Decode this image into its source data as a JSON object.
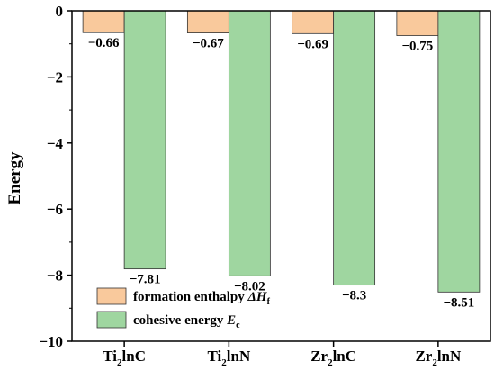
{
  "chart_data": {
    "type": "bar",
    "categories": [
      {
        "pre": "Ti",
        "sub": "2",
        "post": "lnC"
      },
      {
        "pre": "Ti",
        "sub": "2",
        "post": "lnN"
      },
      {
        "pre": "Zr",
        "sub": "2",
        "post": "lnC"
      },
      {
        "pre": "Zr",
        "sub": "2",
        "post": "lnN"
      }
    ],
    "series": [
      {
        "legend": {
          "pre": "formation enthalpy ",
          "symbol": "ΔH",
          "sub": "f"
        },
        "color": "#f9c99c",
        "values": [
          -0.66,
          -0.67,
          -0.69,
          -0.75
        ],
        "labels": [
          "−0.66",
          "−0.67",
          "−0.69",
          "−0.75"
        ]
      },
      {
        "legend": {
          "pre": "cohesive energy ",
          "symbol": "E",
          "sub": "c"
        },
        "color": "#9fd6a0",
        "values": [
          -7.81,
          -8.02,
          -8.3,
          -8.51
        ],
        "labels": [
          "−7.81",
          "−8.02",
          "−8.3",
          "−8.51"
        ]
      }
    ],
    "ylabel": "Energy",
    "ylim": [
      -10,
      0
    ],
    "yticks": [
      0,
      -2,
      -4,
      -6,
      -8,
      -10
    ],
    "ytick_labels": [
      "0",
      "−2",
      "−4",
      "−6",
      "−8",
      "−10"
    ],
    "legend_position": "bottom-left",
    "grid": false
  }
}
